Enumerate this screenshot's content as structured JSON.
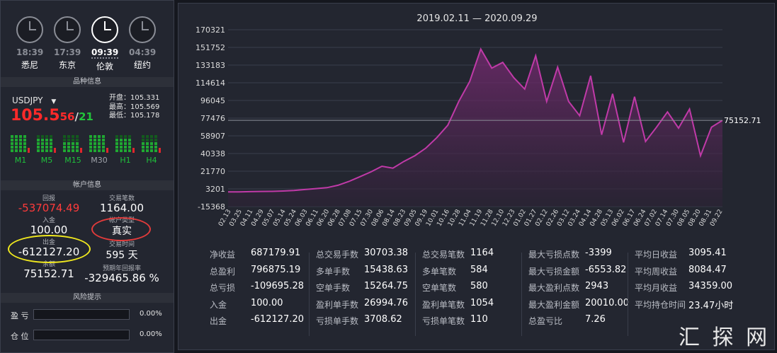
{
  "clocks": [
    {
      "time": "18:39",
      "city": "悉尼",
      "active": false
    },
    {
      "time": "17:39",
      "city": "东京",
      "active": false
    },
    {
      "time": "09:39",
      "city": "伦敦",
      "active": true
    },
    {
      "time": "04:39",
      "city": "纽约",
      "active": false
    }
  ],
  "sections": {
    "symbol_info": "品种信息",
    "account_info": "帐户信息",
    "risk": "风险提示"
  },
  "symbol": {
    "name": "USDJPY",
    "price_main": "105.5",
    "price_bid_tail": "56",
    "separator": "/",
    "price_ask_tail": "21",
    "open": "开盘：105.331",
    "high": "最高：105.569",
    "low": "最低：105.178",
    "timeframes": [
      "M1",
      "M5",
      "M15",
      "M30",
      "H1",
      "H4"
    ]
  },
  "account": {
    "return_label": "回报",
    "return_value": "-537074.49",
    "trades_label": "交易笔数",
    "trades_value": "1164.00",
    "deposit_label": "入金",
    "deposit_value": "100.00",
    "type_label": "帐户类型",
    "type_value": "真实",
    "withdraw_label": "出金",
    "withdraw_value": "-612127.20",
    "time_label": "交易时间",
    "time_value": "595 天",
    "balance_label": "余额",
    "balance_value": "75152.71",
    "annual_label": "预期年回报率",
    "annual_value": "-329465.86 %"
  },
  "risk": [
    {
      "label": "盈 亏",
      "pct": "0.00%"
    },
    {
      "label": "仓 位",
      "pct": "0.00%"
    }
  ],
  "chart_data": {
    "type": "area",
    "title": "2019.02.11 — 2020.09.29",
    "y_ticks": [
      "170321",
      "151752",
      "133183",
      "114614",
      "96045",
      "77476",
      "58907",
      "40338",
      "21770",
      "3201",
      "-15368"
    ],
    "ylim": [
      -15368,
      170321
    ],
    "x_ticks": [
      "02.13",
      "03.25",
      "04.11",
      "04.29",
      "05.07",
      "05.14",
      "05.24",
      "06.03",
      "06.11",
      "06.20",
      "06.28",
      "07.08",
      "07.15",
      "07.30",
      "08.06",
      "08.14",
      "08.23",
      "09.05",
      "09.19",
      "10.01",
      "10.16",
      "10.28",
      "11.04",
      "11.19",
      "11.28",
      "12.10",
      "12.23",
      "01.02",
      "01.27",
      "02.12",
      "02.26",
      "03.12",
      "03.24",
      "04.14",
      "04.28",
      "05.13",
      "06.02",
      "06.17",
      "06.24",
      "07.02",
      "07.14",
      "07.30",
      "08.05",
      "08.20",
      "08.31",
      "09.22"
    ],
    "last_value_label": "75152.71",
    "values": [
      0,
      0,
      300,
      500,
      600,
      1000,
      1500,
      2500,
      3500,
      4500,
      7000,
      11000,
      16000,
      21000,
      27000,
      25000,
      32000,
      38000,
      46000,
      57000,
      70000,
      95000,
      116000,
      150000,
      130000,
      136000,
      120000,
      108000,
      143000,
      95000,
      131000,
      95000,
      80000,
      122000,
      60000,
      103000,
      52000,
      100000,
      53000,
      68000,
      84000,
      67000,
      87000,
      38000,
      68000,
      75152.71
    ],
    "color": "#c03aa8"
  },
  "stats": [
    [
      {
        "l": "净收益",
        "v": "687179.91"
      },
      {
        "l": "总盈利",
        "v": "796875.19"
      },
      {
        "l": "总亏损",
        "v": "-109695.28"
      },
      {
        "l": "入金",
        "v": "100.00"
      },
      {
        "l": "出金",
        "v": "-612127.20"
      }
    ],
    [
      {
        "l": "总交易手数",
        "v": "30703.38"
      },
      {
        "l": "多单手数",
        "v": "15438.63"
      },
      {
        "l": "空单手数",
        "v": "15264.75"
      },
      {
        "l": "盈利单手数",
        "v": "26994.76"
      },
      {
        "l": "亏损单手数",
        "v": "3708.62"
      }
    ],
    [
      {
        "l": "总交易笔数",
        "v": "1164"
      },
      {
        "l": "多单笔数",
        "v": "584"
      },
      {
        "l": "空单笔数",
        "v": "580"
      },
      {
        "l": "盈利单笔数",
        "v": "1054"
      },
      {
        "l": "亏损单笔数",
        "v": "110"
      }
    ],
    [
      {
        "l": "最大亏损点数",
        "v": "-3399"
      },
      {
        "l": "最大亏损金额",
        "v": "-6553.82"
      },
      {
        "l": "最大盈利点数",
        "v": "2943"
      },
      {
        "l": "最大盈利金额",
        "v": "20010.00"
      },
      {
        "l": "总盈亏比",
        "v": "7.26"
      }
    ],
    [
      {
        "l": "平均日收益",
        "v": "3095.41"
      },
      {
        "l": "平均周收益",
        "v": "8084.47"
      },
      {
        "l": "平均月收益",
        "v": "34359.00"
      },
      {
        "l": "平均持仓时间",
        "v": "23.47小时"
      }
    ]
  ],
  "watermark": "汇 探 网"
}
